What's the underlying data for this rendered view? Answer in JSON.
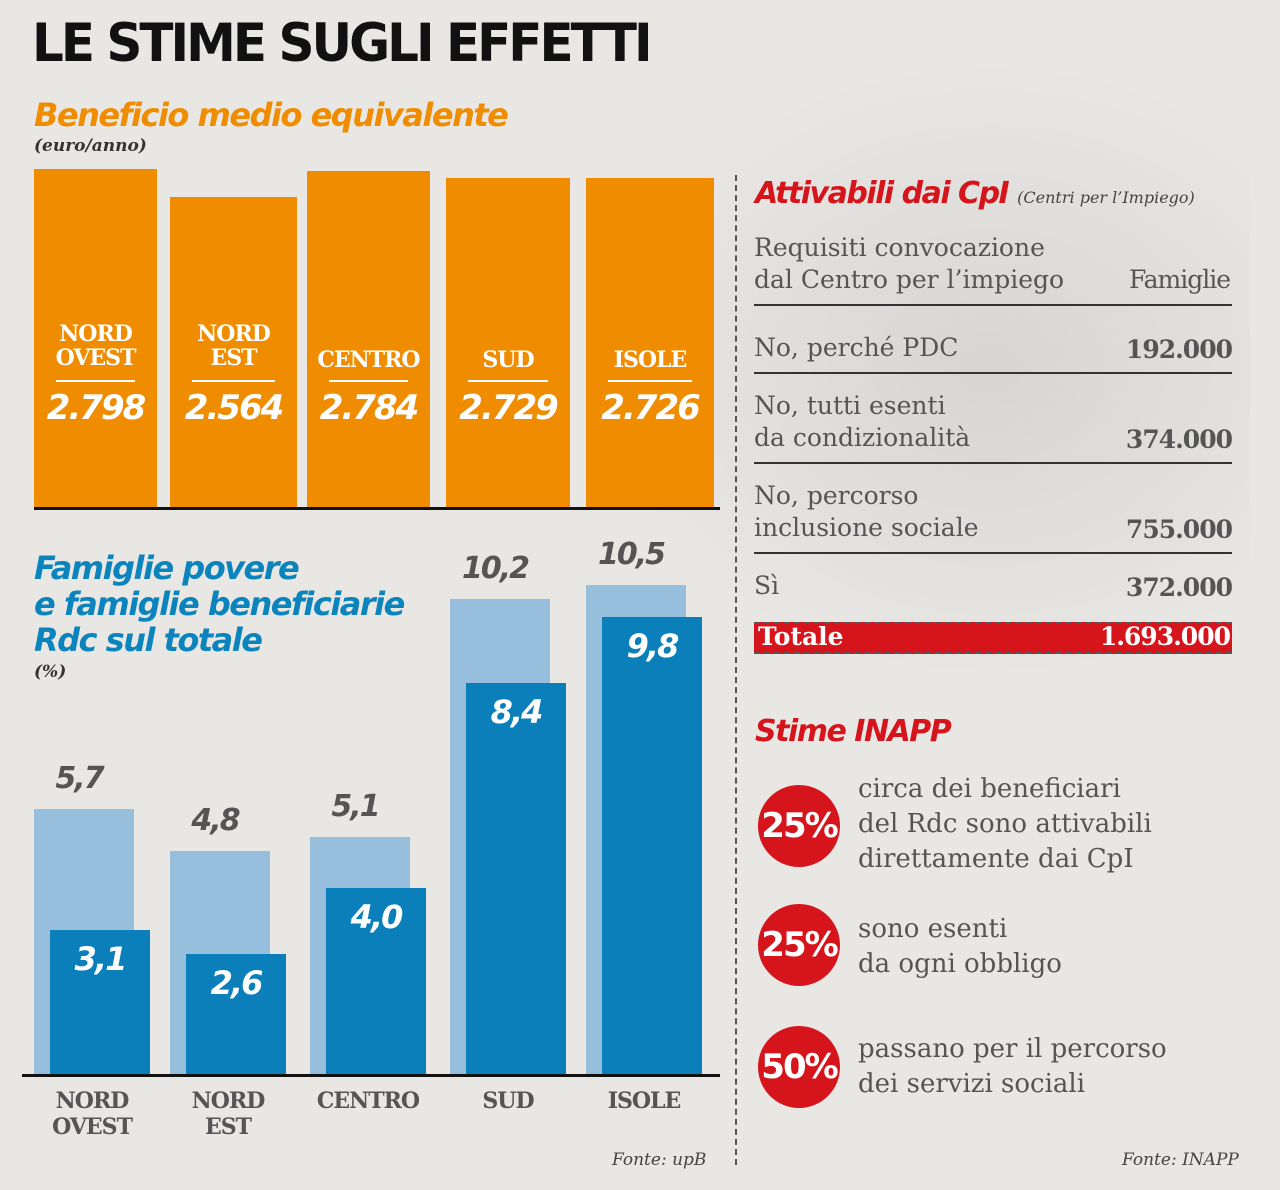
{
  "title": "LE STIME SUGLI EFFETTI",
  "chart_data": [
    {
      "type": "bar",
      "title": "Beneficio medio equivalente",
      "ylabel": "(euro/anno)",
      "categories": [
        "NORD OVEST",
        "NORD EST",
        "CENTRO",
        "SUD",
        "ISOLE"
      ],
      "values": [
        2798,
        2564,
        2784,
        2729,
        2726
      ],
      "value_labels": [
        "2.798",
        "2.564",
        "2.784",
        "2.729",
        "2.726"
      ],
      "color": "#ef8c00"
    },
    {
      "type": "bar",
      "title": "Famiglie povere e famiglie beneficiarie Rdc sul totale",
      "title_lines": [
        "Famiglie povere",
        "e famiglie beneficiarie",
        "Rdc sul totale"
      ],
      "ylabel": "(%)",
      "categories": [
        "NORD OVEST",
        "NORD EST",
        "CENTRO",
        "SUD",
        "ISOLE"
      ],
      "series": [
        {
          "values": [
            5.7,
            4.8,
            5.1,
            10.2,
            10.5
          ],
          "labels": [
            "5,7",
            "4,8",
            "5,1",
            "10,2",
            "10,5"
          ],
          "color": "#98bedd"
        },
        {
          "values": [
            3.1,
            2.6,
            4.0,
            8.4,
            9.8
          ],
          "labels": [
            "3,1",
            "2,6",
            "4,0",
            "8,4",
            "9,8"
          ],
          "color": "#0a7fb9"
        }
      ],
      "source": "Fonte: upB"
    }
  ],
  "cat_lines": [
    [
      "NORD",
      "OVEST"
    ],
    [
      "NORD",
      "EST"
    ],
    [
      "CENTRO",
      ""
    ],
    [
      "SUD",
      ""
    ],
    [
      "ISOLE",
      ""
    ]
  ],
  "cpi": {
    "title": "Attivabili dai CpI",
    "subtitle": "(Centri per l’Impiego)",
    "header_left_1": "Requisiti convocazione",
    "header_left_2": "dal Centro per l’impiego",
    "header_right": "Famiglie",
    "rows": [
      {
        "l1": "No, perché PDC",
        "l2": "",
        "v": "192.000"
      },
      {
        "l1": "No, tutti esenti",
        "l2": "da condizionalità",
        "v": "374.000"
      },
      {
        "l1": "No, percorso",
        "l2": "inclusione sociale",
        "v": "755.000"
      },
      {
        "l1": "Sì",
        "l2": "",
        "v": "372.000"
      }
    ],
    "total_label": "Totale",
    "total_value": "1.693.000"
  },
  "inapp": {
    "title": "Stime INAPP",
    "items": [
      {
        "pct": "25%",
        "lines": [
          "circa dei beneficiari",
          "del Rdc sono attivabili",
          "direttamente dai CpI"
        ]
      },
      {
        "pct": "25%",
        "lines": [
          "sono esenti",
          "da ogni obbligo"
        ]
      },
      {
        "pct": "50%",
        "lines": [
          "passano per il percorso",
          "dei servizi sociali"
        ]
      }
    ],
    "source": "Fonte: INAPP"
  },
  "colors": {
    "orange": "#ef8c00",
    "light_blue": "#98bedd",
    "blue": "#0a7fb9",
    "red": "#d6141c"
  }
}
